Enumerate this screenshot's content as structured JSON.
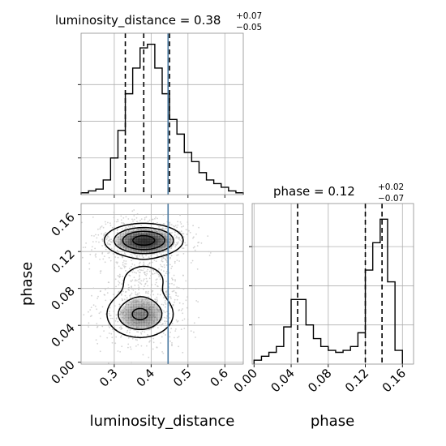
{
  "chart_data": [
    {
      "type": "histogram",
      "panel": "luminosity_distance-marginal",
      "title": "luminosity_distance = 0.38",
      "title_sup": "+0.07",
      "title_sub": "−0.05",
      "bin_edges": [
        0.21,
        0.23,
        0.25,
        0.27,
        0.29,
        0.31,
        0.33,
        0.35,
        0.37,
        0.39,
        0.41,
        0.43,
        0.45,
        0.47,
        0.49,
        0.51,
        0.53,
        0.55,
        0.57,
        0.59,
        0.61,
        0.63,
        0.65
      ],
      "counts": [
        1,
        2,
        3,
        8,
        20,
        35,
        55,
        69,
        80,
        82,
        69,
        55,
        41,
        33,
        23,
        18,
        12,
        8,
        6,
        4,
        2,
        1
      ],
      "quantiles": [
        0.33,
        0.38,
        0.45
      ],
      "truth": 0.446,
      "xlim": [
        0.21,
        0.65
      ],
      "xticks": [
        0.3,
        0.4,
        0.5,
        0.6
      ],
      "ylim": [
        0,
        88
      ],
      "grid": true
    },
    {
      "type": "histogram",
      "panel": "phase-marginal",
      "title": "phase = 0.12",
      "title_sup": "+0.02",
      "title_sub": "−0.07",
      "bin_edges": [
        0.0,
        0.008,
        0.016,
        0.024,
        0.032,
        0.04,
        0.048,
        0.056,
        0.064,
        0.072,
        0.08,
        0.088,
        0.096,
        0.104,
        0.112,
        0.12,
        0.128,
        0.136,
        0.144,
        0.152,
        0.16
      ],
      "counts": [
        2,
        4,
        6,
        9,
        19,
        33,
        33,
        20,
        13,
        9,
        7,
        6,
        7,
        9,
        16,
        48,
        62,
        74,
        42,
        7
      ],
      "quantiles": [
        0.047,
        0.12,
        0.138
      ],
      "xlim": [
        -0.002,
        0.172
      ],
      "xticks": [
        0.0,
        0.04,
        0.08,
        0.12,
        0.16
      ],
      "xticklabels": [
        "0.00",
        "0.04",
        "0.08",
        "0.12",
        "0.16"
      ],
      "ylim": [
        0,
        82
      ],
      "xlabel": "phase",
      "grid": true
    },
    {
      "type": "scatter",
      "panel": "joint-density",
      "xlabel": "luminosity_distance",
      "ylabel": "phase",
      "xlim": [
        0.21,
        0.65
      ],
      "ylim": [
        -0.002,
        0.172
      ],
      "xticks": [
        0.3,
        0.4,
        0.5,
        0.6
      ],
      "yticks": [
        0.0,
        0.04,
        0.08,
        0.12,
        0.16
      ],
      "yticklabels": [
        "0.00",
        "0.04",
        "0.08",
        "0.12",
        "0.16"
      ],
      "truth_x": 0.446,
      "modes": [
        {
          "x": 0.38,
          "y": 0.132,
          "sx": 0.052,
          "sy": 0.009,
          "weight": 0.55
        },
        {
          "x": 0.37,
          "y": 0.052,
          "sx": 0.05,
          "sy": 0.014,
          "weight": 0.33
        },
        {
          "x": 0.38,
          "y": 0.09,
          "sx": 0.045,
          "sy": 0.012,
          "weight": 0.12
        }
      ],
      "levels": [
        0.12,
        0.3,
        0.55,
        0.85
      ],
      "grid": true
    }
  ],
  "colors": {
    "truth": "#4878a0",
    "hist": "#000000",
    "points": "#c8c8c8",
    "density_dark": "#1a1a1a"
  }
}
